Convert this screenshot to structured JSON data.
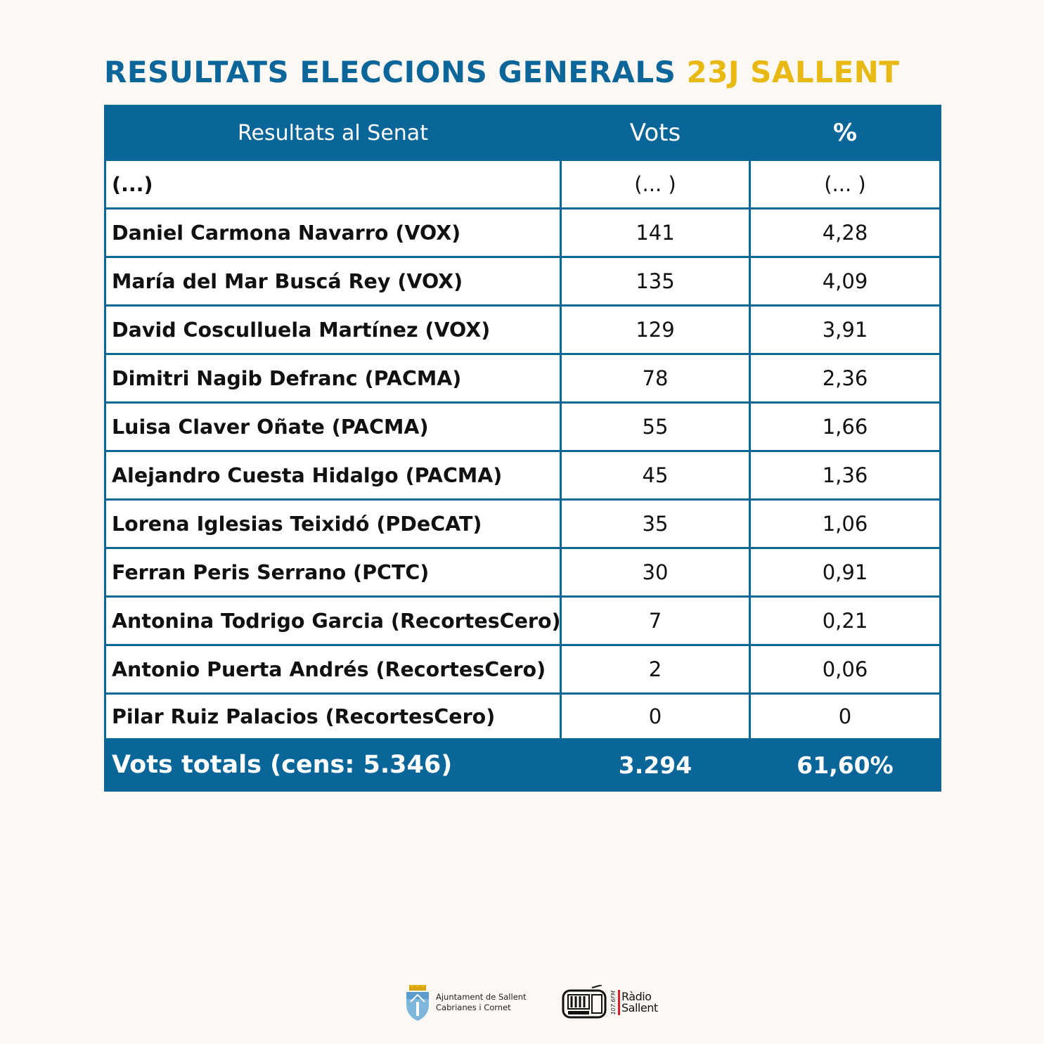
{
  "title": {
    "main": "RESULTATS ELECCIONS GENERALS",
    "highlight": "23J SALLENT"
  },
  "colors": {
    "primary": "#0a6699",
    "accent": "#e9b913",
    "background": "#fcf8f4"
  },
  "table": {
    "headers": {
      "name": "Resultats al Senat",
      "votes": "Vots",
      "percent": "%"
    },
    "rows": [
      {
        "name": "(...)",
        "votes": "(... )",
        "percent": "(... )"
      },
      {
        "name": "Daniel Carmona Navarro (VOX)",
        "votes": "141",
        "percent": "4,28"
      },
      {
        "name": "María del Mar Buscá Rey (VOX)",
        "votes": "135",
        "percent": "4,09"
      },
      {
        "name": "David Cosculluela Martínez (VOX)",
        "votes": "129",
        "percent": "3,91"
      },
      {
        "name": "Dimitri Nagib Defranc (PACMA)",
        "votes": "78",
        "percent": "2,36"
      },
      {
        "name": "Luisa Claver Oñate (PACMA)",
        "votes": "55",
        "percent": "1,66"
      },
      {
        "name": "Alejandro Cuesta Hidalgo (PACMA)",
        "votes": "45",
        "percent": "1,36"
      },
      {
        "name": "Lorena Iglesias Teixidó (PDeCAT)",
        "votes": "35",
        "percent": "1,06"
      },
      {
        "name": "Ferran Peris Serrano (PCTC)",
        "votes": "30",
        "percent": "0,91"
      },
      {
        "name": "Antonina Todrigo Garcia (RecortesCero)",
        "votes": "7",
        "percent": "0,21"
      },
      {
        "name": "Antonio Puerta Andrés  (RecortesCero)",
        "votes": "2",
        "percent": "0,06"
      },
      {
        "name": "Pilar Ruiz Palacios (RecortesCero)",
        "votes": "0",
        "percent": "0"
      }
    ],
    "total": {
      "name": "Vots totals (cens: 5.346)",
      "votes": "3.294",
      "percent": "61,60%"
    }
  },
  "footer": {
    "ajuntament": {
      "icon": "shield-icon",
      "line1": "Ajuntament de Sallent",
      "line2": "Cabrianes i Cornet"
    },
    "radio": {
      "icon": "radio-icon",
      "freq": "107.6FM",
      "line1": "Ràdio",
      "line2": "Sallent"
    }
  }
}
